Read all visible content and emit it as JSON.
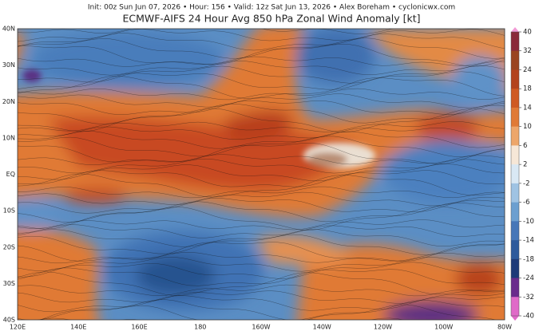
{
  "header": {
    "info": "Init: 00z Sun Jun 07, 2026 • Hour: 156 • Valid: 12z Sat Jun 13, 2026 • Alex Boreham • cyclonicwx.com",
    "title": "ECMWF-AIFS 24 Hour Avg 850 hPa Zonal Wind Anomaly [kt]"
  },
  "map": {
    "lat_labels": [
      "40N",
      "30N",
      "20N",
      "10N",
      "EQ",
      "10S",
      "20S",
      "30S",
      "40S"
    ],
    "lon_labels": [
      "120E",
      "140E",
      "160E",
      "180",
      "160W",
      "140W",
      "120W",
      "100W",
      "80W"
    ]
  },
  "colorbar": {
    "ticks": [
      40,
      32,
      24,
      18,
      14,
      10,
      6,
      2,
      -2,
      -6,
      -10,
      -14,
      -18,
      -24,
      -32,
      -40
    ]
  }
}
